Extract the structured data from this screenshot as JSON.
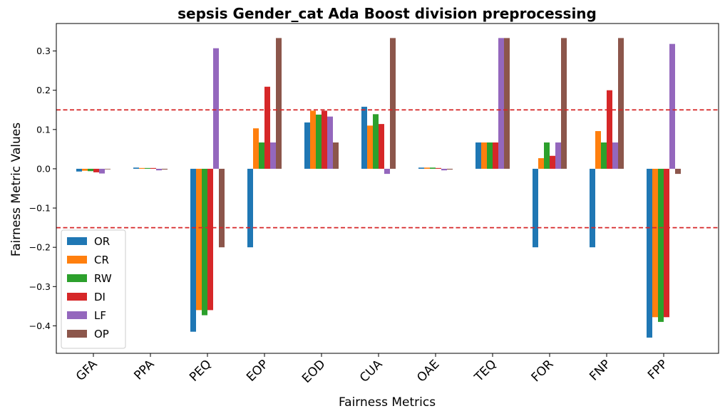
{
  "chart_data": {
    "type": "bar",
    "title": "sepsis Gender_cat Ada Boost division preprocessing",
    "xlabel": "Fairness Metrics",
    "ylabel": "Fairness Metric Values",
    "ylim": [
      -0.47,
      0.37
    ],
    "yticks": [
      -0.4,
      -0.3,
      -0.2,
      -0.1,
      0.0,
      0.1,
      0.2,
      0.3
    ],
    "ytick_labels": [
      "−0.4",
      "−0.3",
      "−0.2",
      "−0.1",
      "0.0",
      "0.1",
      "0.2",
      "0.3"
    ],
    "categories": [
      "GFA",
      "PPA",
      "PEQ",
      "EOP",
      "EOD",
      "CUA",
      "OAE",
      "TEQ",
      "FOR",
      "FNP",
      "FPP"
    ],
    "reference_lines": [
      0.15,
      -0.15
    ],
    "reference_line_color": "#d62728",
    "legend_position": "lower-left",
    "series": [
      {
        "name": "OR",
        "color": "#1f77b4",
        "values": [
          -0.007,
          0.003,
          -0.415,
          -0.2,
          0.118,
          0.158,
          0.003,
          0.067,
          -0.2,
          -0.2,
          -0.43
        ]
      },
      {
        "name": "CR",
        "color": "#ff7f0e",
        "values": [
          -0.005,
          0.002,
          -0.36,
          0.103,
          0.148,
          0.11,
          0.003,
          0.067,
          0.027,
          0.096,
          -0.378
        ]
      },
      {
        "name": "RW",
        "color": "#2ca02c",
        "values": [
          -0.006,
          0.002,
          -0.373,
          0.067,
          0.138,
          0.139,
          0.003,
          0.067,
          0.067,
          0.067,
          -0.39
        ]
      },
      {
        "name": "DI",
        "color": "#d62728",
        "values": [
          -0.009,
          0.002,
          -0.36,
          0.209,
          0.148,
          0.114,
          0.002,
          0.067,
          0.033,
          0.2,
          -0.378
        ]
      },
      {
        "name": "LF",
        "color": "#9467bd",
        "values": [
          -0.012,
          -0.004,
          0.307,
          0.067,
          0.133,
          -0.013,
          -0.004,
          0.333,
          0.067,
          0.067,
          0.318
        ]
      },
      {
        "name": "OP",
        "color": "#8c564b",
        "values": [
          0.0,
          -0.002,
          -0.2,
          0.333,
          0.067,
          0.333,
          -0.002,
          0.333,
          0.333,
          0.333,
          -0.013
        ]
      }
    ]
  }
}
